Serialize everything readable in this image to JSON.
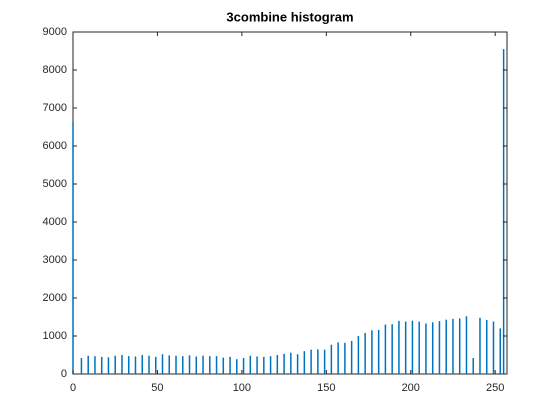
{
  "chart_data": {
    "type": "histogram",
    "title": "3combine histogram",
    "x": [
      0,
      5,
      9,
      13,
      17,
      21,
      25,
      29,
      33,
      37,
      41,
      45,
      49,
      53,
      57,
      61,
      65,
      69,
      73,
      77,
      81,
      85,
      89,
      93,
      97,
      101,
      105,
      109,
      113,
      117,
      121,
      125,
      129,
      133,
      137,
      141,
      145,
      149,
      153,
      157,
      161,
      165,
      169,
      173,
      177,
      181,
      185,
      189,
      193,
      197,
      201,
      205,
      209,
      213,
      217,
      221,
      225,
      229,
      233,
      237,
      241,
      245,
      249,
      253,
      255
    ],
    "values": [
      6650,
      420,
      480,
      470,
      450,
      440,
      480,
      500,
      470,
      460,
      500,
      480,
      450,
      520,
      490,
      480,
      470,
      490,
      460,
      480,
      470,
      470,
      430,
      450,
      390,
      420,
      480,
      460,
      450,
      470,
      500,
      530,
      560,
      520,
      600,
      640,
      650,
      640,
      770,
      830,
      820,
      870,
      1000,
      1080,
      1150,
      1160,
      1300,
      1310,
      1400,
      1380,
      1400,
      1380,
      1330,
      1360,
      1390,
      1430,
      1450,
      1460,
      1520,
      420,
      1480,
      1420,
      1380,
      1200,
      8550
    ],
    "color": "#0072bd",
    "xlim": [
      0,
      257
    ],
    "xticks": [
      0,
      50,
      100,
      150,
      200,
      250
    ],
    "ylim": [
      0,
      9000
    ],
    "yticks": [
      0,
      1000,
      2000,
      3000,
      4000,
      5000,
      6000,
      7000,
      8000,
      9000
    ]
  }
}
